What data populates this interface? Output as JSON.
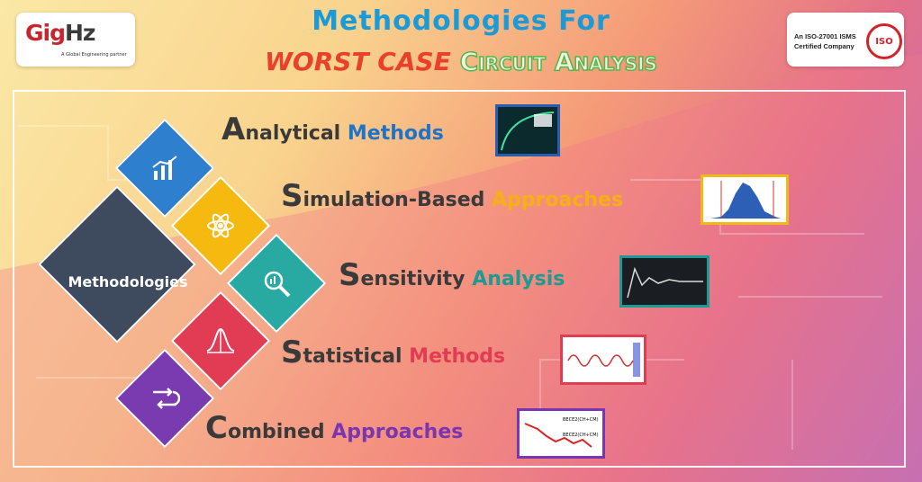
{
  "brand": {
    "logo_text_1": "Gig",
    "logo_text_2": "Hz",
    "tagline": "A Global Engineering partner"
  },
  "iso": {
    "line1": "An ISO-27001 ISMS",
    "line2": "Certified Company",
    "seal": "ISO"
  },
  "title": {
    "line1": "Methodologies For",
    "worst": "WORST CASE",
    "rest": "Circuit Analysis"
  },
  "hub": {
    "label": "Methodologies"
  },
  "items": [
    {
      "cap": "A",
      "a": "nalytical ",
      "b": "Methods",
      "color_b": "#1f74c8",
      "icon": "bar-chart-icon",
      "dcolor": "#2e7fce"
    },
    {
      "cap": "S",
      "a": "imulation-Based ",
      "b": "Approaches",
      "color_b": "#f7b011",
      "icon": "atom-icon",
      "dcolor": "#f6b90f"
    },
    {
      "cap": "S",
      "a": "ensitivity ",
      "b": "Analysis",
      "color_b": "#1b9b93",
      "icon": "magnifier-icon",
      "dcolor": "#28a9a1"
    },
    {
      "cap": "S",
      "a": "tatistical ",
      "b": "Methods",
      "color_b": "#e23c52",
      "icon": "bell-curve-icon",
      "dcolor": "#e23c55"
    },
    {
      "cap": "C",
      "a": "ombined ",
      "b": "Approaches",
      "color_b": "#7a35b0",
      "icon": "flow-icon",
      "dcolor": "#7a3ab0"
    }
  ],
  "thumb_labels": {
    "t5a": "BECE2(CH+CM)",
    "t5b": "BECE2(CH+CM)"
  }
}
